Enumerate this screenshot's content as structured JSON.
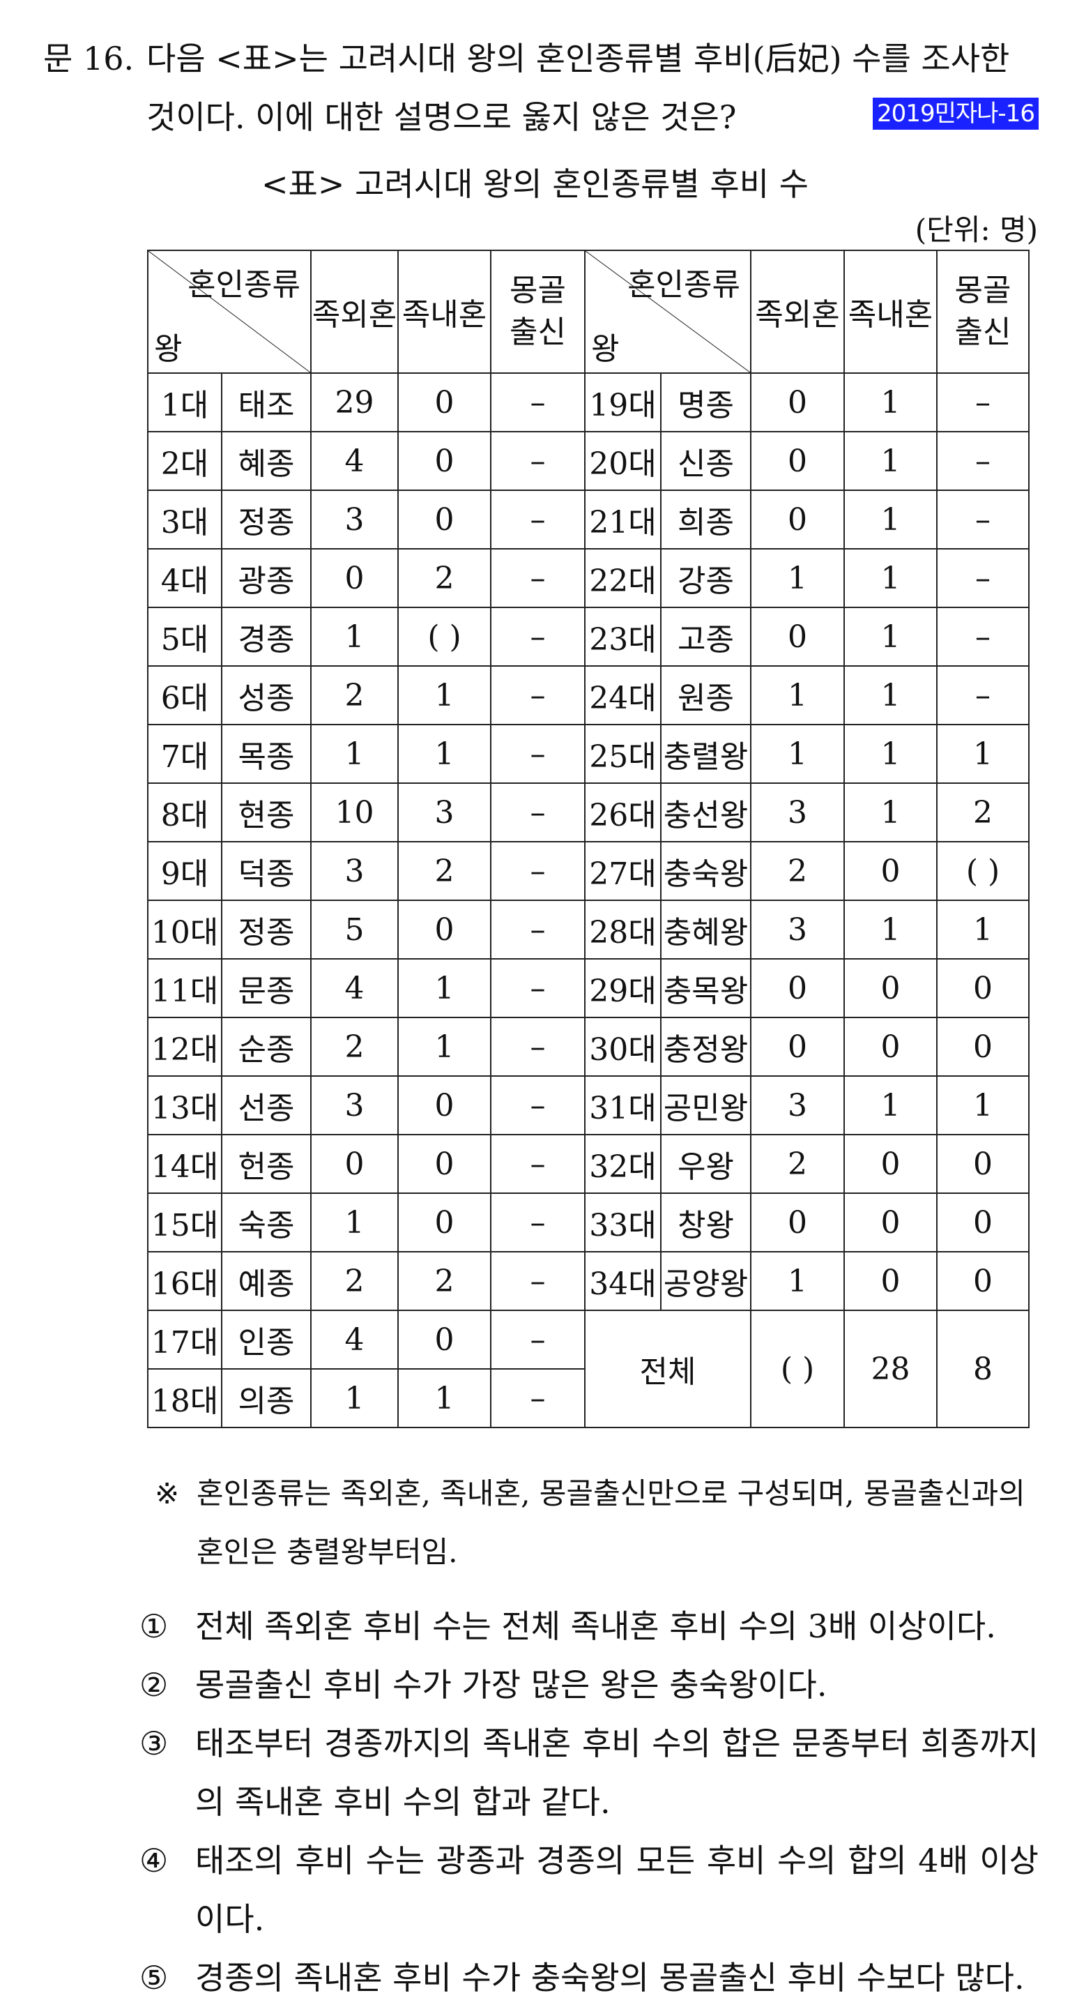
{
  "question": {
    "number": "문 16.",
    "line1": "다음 <표>는 고려시대 왕의 혼인종류별 후비(后妃) 수를 조사한",
    "line2": "것이다. 이에 대한 설명으로 옳지 않은 것은?",
    "tag": "2019민자나-16"
  },
  "table_title": "<표> 고려시대 왕의 혼인종류별 후비 수",
  "unit": "(단위: 명)",
  "header": {
    "diag_top": "혼인종류",
    "diag_bottom": "왕",
    "col1": "족외혼",
    "col2": "족내혼",
    "col3_a": "몽골",
    "col3_b": "출신"
  },
  "rows_left": [
    {
      "gen": "1대",
      "king": "태조",
      "out": "29",
      "in": "0",
      "mg": "–"
    },
    {
      "gen": "2대",
      "king": "혜종",
      "out": "4",
      "in": "0",
      "mg": "–"
    },
    {
      "gen": "3대",
      "king": "정종",
      "out": "3",
      "in": "0",
      "mg": "–"
    },
    {
      "gen": "4대",
      "king": "광종",
      "out": "0",
      "in": "2",
      "mg": "–"
    },
    {
      "gen": "5대",
      "king": "경종",
      "out": "1",
      "in": "( )",
      "mg": "–"
    },
    {
      "gen": "6대",
      "king": "성종",
      "out": "2",
      "in": "1",
      "mg": "–"
    },
    {
      "gen": "7대",
      "king": "목종",
      "out": "1",
      "in": "1",
      "mg": "–"
    },
    {
      "gen": "8대",
      "king": "현종",
      "out": "10",
      "in": "3",
      "mg": "–"
    },
    {
      "gen": "9대",
      "king": "덕종",
      "out": "3",
      "in": "2",
      "mg": "–"
    },
    {
      "gen": "10대",
      "king": "정종",
      "out": "5",
      "in": "0",
      "mg": "–"
    },
    {
      "gen": "11대",
      "king": "문종",
      "out": "4",
      "in": "1",
      "mg": "–"
    },
    {
      "gen": "12대",
      "king": "순종",
      "out": "2",
      "in": "1",
      "mg": "–"
    },
    {
      "gen": "13대",
      "king": "선종",
      "out": "3",
      "in": "0",
      "mg": "–"
    },
    {
      "gen": "14대",
      "king": "헌종",
      "out": "0",
      "in": "0",
      "mg": "–"
    },
    {
      "gen": "15대",
      "king": "숙종",
      "out": "1",
      "in": "0",
      "mg": "–"
    },
    {
      "gen": "16대",
      "king": "예종",
      "out": "2",
      "in": "2",
      "mg": "–"
    },
    {
      "gen": "17대",
      "king": "인종",
      "out": "4",
      "in": "0",
      "mg": "–"
    },
    {
      "gen": "18대",
      "king": "의종",
      "out": "1",
      "in": "1",
      "mg": "–"
    }
  ],
  "rows_right": [
    {
      "gen": "19대",
      "king": "명종",
      "out": "0",
      "in": "1",
      "mg": "–"
    },
    {
      "gen": "20대",
      "king": "신종",
      "out": "0",
      "in": "1",
      "mg": "–"
    },
    {
      "gen": "21대",
      "king": "희종",
      "out": "0",
      "in": "1",
      "mg": "–"
    },
    {
      "gen": "22대",
      "king": "강종",
      "out": "1",
      "in": "1",
      "mg": "–"
    },
    {
      "gen": "23대",
      "king": "고종",
      "out": "0",
      "in": "1",
      "mg": "–"
    },
    {
      "gen": "24대",
      "king": "원종",
      "out": "1",
      "in": "1",
      "mg": "–"
    },
    {
      "gen": "25대",
      "king": "충렬왕",
      "out": "1",
      "in": "1",
      "mg": "1"
    },
    {
      "gen": "26대",
      "king": "충선왕",
      "out": "3",
      "in": "1",
      "mg": "2"
    },
    {
      "gen": "27대",
      "king": "충숙왕",
      "out": "2",
      "in": "0",
      "mg": "( )"
    },
    {
      "gen": "28대",
      "king": "충혜왕",
      "out": "3",
      "in": "1",
      "mg": "1"
    },
    {
      "gen": "29대",
      "king": "충목왕",
      "out": "0",
      "in": "0",
      "mg": "0"
    },
    {
      "gen": "30대",
      "king": "충정왕",
      "out": "0",
      "in": "0",
      "mg": "0"
    },
    {
      "gen": "31대",
      "king": "공민왕",
      "out": "3",
      "in": "1",
      "mg": "1"
    },
    {
      "gen": "32대",
      "king": "우왕",
      "out": "2",
      "in": "0",
      "mg": "0"
    },
    {
      "gen": "33대",
      "king": "창왕",
      "out": "0",
      "in": "0",
      "mg": "0"
    },
    {
      "gen": "34대",
      "king": "공양왕",
      "out": "1",
      "in": "0",
      "mg": "0"
    }
  ],
  "total": {
    "label": "전체",
    "out": "( )",
    "in": "28",
    "mg": "8"
  },
  "note": {
    "mark": "※",
    "text": "혼인종류는 족외혼, 족내혼, 몽골출신만으로 구성되며, 몽골출신과의 혼인은 충렬왕부터임."
  },
  "options": [
    {
      "num": "①",
      "text": "전체 족외혼 후비 수는 전체 족내혼 후비 수의 3배 이상이다."
    },
    {
      "num": "②",
      "text": "몽골출신 후비 수가 가장 많은 왕은 충숙왕이다."
    },
    {
      "num": "③",
      "text": "태조부터 경종까지의 족내혼 후비 수의 합은 문종부터 희종까지의 족내혼 후비 수의 합과 같다."
    },
    {
      "num": "④",
      "text": "태조의 후비 수는 광종과 경종의 모든 후비 수의 합의 4배 이상이다."
    },
    {
      "num": "⑤",
      "text": "경종의 족내혼 후비 수가 충숙왕의 몽골출신 후비 수보다 많다."
    }
  ]
}
